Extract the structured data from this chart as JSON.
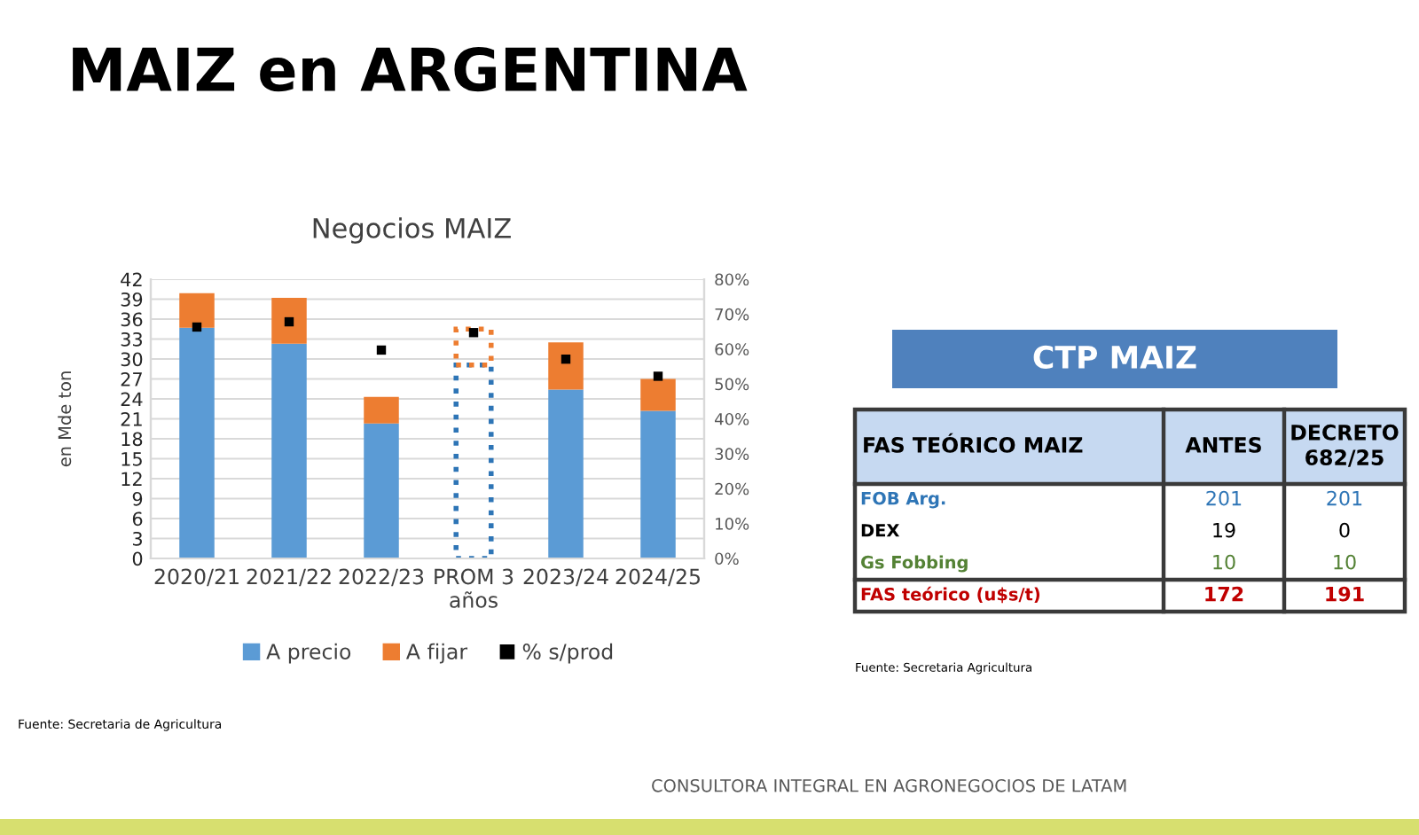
{
  "chart_data": [
    {
      "type": "bar",
      "title": "MAIZ en ARGENTINA",
      "subtitle": "Negocios MAIZ",
      "ylabel": "en Mde ton",
      "categories": [
        "2020/21",
        "2021/22",
        "2022/23",
        "PROM 3 años",
        "2023/24",
        "2024/25"
      ],
      "stacked": true,
      "series": [
        {
          "name": "A precio",
          "color": "#5b9bd5",
          "values": [
            34.7,
            32.3,
            20.3,
            null,
            25.4,
            22.2
          ]
        },
        {
          "name": "A fijar",
          "color": "#ed7d31",
          "values": [
            5.2,
            6.9,
            4.0,
            null,
            7.1,
            4.8
          ]
        },
        {
          "color": "#2e75b6",
          "line_style": "dotted",
          "values": [
            null,
            null,
            null,
            29.1,
            null,
            null
          ]
        },
        {
          "color": "#ed7d31",
          "line_style": "dotted",
          "values": [
            null,
            null,
            null,
            5.4,
            null,
            null
          ]
        },
        {
          "type": "scatter",
          "name": "% s/prod",
          "axis": "y2",
          "color": "#000000",
          "marker": "square",
          "values": [
            66.3,
            67.8,
            59.7,
            64.7,
            57.1,
            52.2
          ]
        }
      ],
      "ylim": [
        0,
        42
      ],
      "yticks": [
        0,
        3,
        6,
        9,
        12,
        15,
        18,
        21,
        24,
        27,
        30,
        33,
        36,
        39,
        42
      ],
      "y2lim": [
        0,
        80
      ],
      "y2ticks": [
        {
          "value": 0,
          "label": "0%"
        },
        {
          "value": 10,
          "label": "10%"
        },
        {
          "value": 20,
          "label": "20%"
        },
        {
          "value": 30,
          "label": "30%"
        },
        {
          "value": 40,
          "label": "40%"
        },
        {
          "value": 50,
          "label": "50%"
        },
        {
          "value": 60,
          "label": "60%"
        },
        {
          "value": 70,
          "label": "70%"
        },
        {
          "value": 80,
          "label": "80%"
        }
      ],
      "grid": "y",
      "legend": "bottom",
      "annotations": [
        "Fuente: Secretaria de Agricultura",
        "CONSULTORA INTEGRAL EN AGRONEGOCIOS DE LATAM"
      ]
    },
    {
      "type": "other",
      "title": "CTP MAIZ",
      "legend_title": "FAS TEÓRICO MAIZ",
      "categories": [
        "ANTES",
        "DECRETO 682/25"
      ],
      "series": [
        {
          "name": "FOB Arg.",
          "color": "#2e75b6",
          "values": [
            201,
            201
          ]
        },
        {
          "name": "DEX",
          "color": "#000000",
          "values": [
            19,
            0
          ]
        },
        {
          "name": "Gs Fobbing",
          "color": "#548235",
          "values": [
            10,
            10
          ]
        },
        {
          "name": "FAS teórico (u$s/t)",
          "color": "#c00000",
          "values": [
            172,
            191
          ]
        }
      ],
      "data_labels": true,
      "annotations": [
        "Fuente: Secretaria Agricultura"
      ]
    }
  ]
}
